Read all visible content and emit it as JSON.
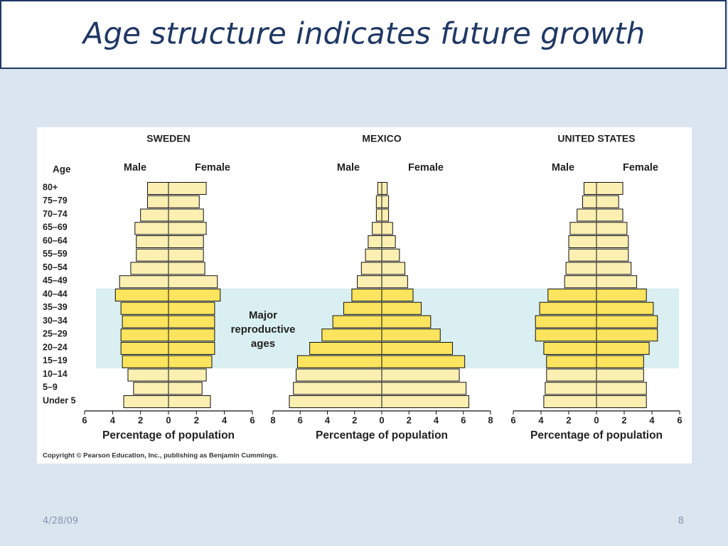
{
  "title": "Age structure indicates future growth",
  "footer": {
    "date": "4/28/09",
    "page": "8"
  },
  "copyright": "Copyright © Pearson Education, Inc., publishing as Benjamin Cummings.",
  "annotation": "Major reproductive ages",
  "highlight_range": [
    "40–44",
    "15–19"
  ],
  "chart_data": [
    {
      "type": "pyramid",
      "title": "SWEDEN",
      "age_label": "Age",
      "xlabel": "Percentage of population",
      "categories": [
        "80+",
        "75–79",
        "70–74",
        "65–69",
        "60–64",
        "55–59",
        "50–54",
        "45–49",
        "40–44",
        "35–39",
        "30–34",
        "25–29",
        "20–24",
        "15–19",
        "10–14",
        "5–9",
        "Under 5"
      ],
      "color": "#fcefb2",
      "highlight_color": "#fde45e",
      "series": [
        {
          "name": "Male",
          "values": [
            1.5,
            1.5,
            2.0,
            2.4,
            2.3,
            2.3,
            2.7,
            3.5,
            3.8,
            3.4,
            3.3,
            3.4,
            3.4,
            3.3,
            2.9,
            2.5,
            3.2
          ]
        },
        {
          "name": "Female",
          "values": [
            2.7,
            2.2,
            2.5,
            2.7,
            2.5,
            2.5,
            2.6,
            3.5,
            3.7,
            3.3,
            3.3,
            3.3,
            3.3,
            3.1,
            2.7,
            2.4,
            3.0
          ]
        }
      ],
      "xlim": [
        -6,
        6
      ],
      "xticks": [
        {
          "value": -6,
          "label": "6"
        },
        {
          "value": -4,
          "label": "4"
        },
        {
          "value": -2,
          "label": "2"
        },
        0,
        2,
        4,
        6
      ]
    },
    {
      "type": "pyramid",
      "title": "MEXICO",
      "xlabel": "Percentage of population",
      "categories": [
        "80+",
        "75–79",
        "70–74",
        "65–69",
        "60–64",
        "55–59",
        "50–54",
        "45–49",
        "40–44",
        "35–39",
        "30–34",
        "25–29",
        "20–24",
        "15–19",
        "10–14",
        "5–9",
        "Under 5"
      ],
      "color": "#fcefb2",
      "highlight_color": "#fde45e",
      "series": [
        {
          "name": "Male",
          "values": [
            0.3,
            0.4,
            0.4,
            0.7,
            1.0,
            1.2,
            1.5,
            1.8,
            2.2,
            2.8,
            3.6,
            4.4,
            5.3,
            6.2,
            6.3,
            6.5,
            6.8
          ]
        },
        {
          "name": "Female",
          "values": [
            0.4,
            0.5,
            0.5,
            0.8,
            1.0,
            1.3,
            1.7,
            1.9,
            2.3,
            2.9,
            3.6,
            4.3,
            5.2,
            6.1,
            5.7,
            6.2,
            6.4
          ]
        }
      ],
      "xlim": [
        -8,
        8
      ],
      "xticks": [
        {
          "value": -8,
          "label": "8"
        },
        {
          "value": -6,
          "label": "6"
        },
        {
          "value": -4,
          "label": "4"
        },
        {
          "value": -2,
          "label": "2"
        },
        0,
        2,
        4,
        6,
        8
      ]
    },
    {
      "type": "pyramid",
      "title": "UNITED STATES",
      "xlabel": "Percentage of population",
      "categories": [
        "80+",
        "75–79",
        "70–74",
        "65–69",
        "60–64",
        "55–59",
        "50–54",
        "45–49",
        "40–44",
        "35–39",
        "30–34",
        "25–29",
        "20–24",
        "15–19",
        "10–14",
        "5–9",
        "Under 5"
      ],
      "color": "#fcefb2",
      "highlight_color": "#fde45e",
      "series": [
        {
          "name": "Male",
          "values": [
            0.9,
            1.0,
            1.4,
            1.9,
            2.0,
            2.0,
            2.2,
            2.3,
            3.5,
            4.1,
            4.4,
            4.4,
            3.8,
            3.6,
            3.6,
            3.7,
            3.8
          ]
        },
        {
          "name": "Female",
          "values": [
            1.9,
            1.6,
            1.9,
            2.2,
            2.3,
            2.3,
            2.5,
            2.9,
            3.6,
            4.1,
            4.4,
            4.4,
            3.8,
            3.4,
            3.4,
            3.6,
            3.6
          ]
        }
      ],
      "xlim": [
        -6,
        6
      ],
      "xticks": [
        {
          "value": -6,
          "label": "6"
        },
        {
          "value": -4,
          "label": "4"
        },
        {
          "value": -2,
          "label": "2"
        },
        0,
        2,
        4,
        6
      ]
    }
  ]
}
